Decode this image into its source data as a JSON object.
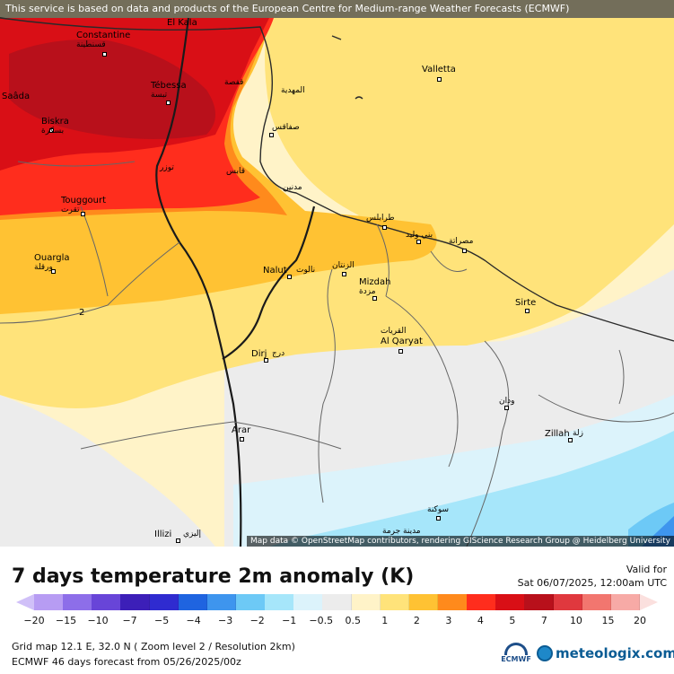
{
  "map": {
    "top_attribution": "This service is based on data and products of the European Centre for Medium-range Weather Forecasts (ECMWF)",
    "bottom_attribution": "Map data © OpenStreetMap contributors, rendering GIScience Research Group @ Heidelberg University",
    "contour_label": "2",
    "cities": [
      {
        "latin": "Constantine",
        "arabic": "قسنطينة"
      },
      {
        "latin": "El Kala",
        "arabic": ""
      },
      {
        "latin": "Saâda",
        "arabic": ""
      },
      {
        "latin": "Tébessa",
        "arabic": "تبسة"
      },
      {
        "latin": "Biskra",
        "arabic": "بسكرة"
      },
      {
        "latin": "",
        "arabic": "المهدية"
      },
      {
        "latin": "",
        "arabic": "صفاقس"
      },
      {
        "latin": "",
        "arabic": "توزر"
      },
      {
        "latin": "",
        "arabic": "قفصة"
      },
      {
        "latin": "Valletta",
        "arabic": ""
      },
      {
        "latin": "Touggourt",
        "arabic": "تقرت"
      },
      {
        "latin": "",
        "arabic": "قابس"
      },
      {
        "latin": "",
        "arabic": "مدنين"
      },
      {
        "latin": "Ouargla",
        "arabic": "ورقلة"
      },
      {
        "latin": "",
        "arabic": "طرابلس"
      },
      {
        "latin": "",
        "arabic": "مصراتة"
      },
      {
        "latin": "Nalut",
        "arabic": "نالوت"
      },
      {
        "latin": "",
        "arabic": "الزنتان"
      },
      {
        "latin": "Mizdah",
        "arabic": "مزدة"
      },
      {
        "latin": "Sirte",
        "arabic": ""
      },
      {
        "latin": "Al Qaryat",
        "arabic": "القريات"
      },
      {
        "latin": "Dirj",
        "arabic": "درج"
      },
      {
        "latin": "",
        "arabic": "ودان"
      },
      {
        "latin": "Zillah",
        "arabic": "زلة"
      },
      {
        "latin": "Arar",
        "arabic": ""
      },
      {
        "latin": "",
        "arabic": "سوكنة"
      },
      {
        "latin": "",
        "arabic": "مدينة جرمة"
      },
      {
        "latin": "Illizi",
        "arabic": "إليزي"
      },
      {
        "latin": "",
        "arabic": "بني وليد"
      }
    ]
  },
  "header": {
    "title": "7 days temperature 2m anomaly (K)",
    "valid_label": "Valid for",
    "valid_value": "Sat 06/07/2025, 12:00am UTC"
  },
  "legend": {
    "ticks": [
      "−20",
      "−15",
      "−10",
      "−7",
      "−5",
      "−4",
      "−3",
      "−2",
      "−1",
      "−0.5",
      "0.5",
      "1",
      "2",
      "3",
      "4",
      "5",
      "7",
      "10",
      "15",
      "20"
    ],
    "colors": [
      "#b79cf3",
      "#8d6ee9",
      "#6845d8",
      "#3c1fb8",
      "#2f2bd0",
      "#1f64e0",
      "#3e95ee",
      "#6dc9f6",
      "#a6e6fa",
      "#dcf3fb",
      "#ececec",
      "#fff3c8",
      "#ffe37a",
      "#ffc233",
      "#ff8a1c",
      "#ff2d1d",
      "#d90f16",
      "#b8101b",
      "#e0383e",
      "#f2766f",
      "#f7aaa6"
    ],
    "low_cap_color": "#d0c0f8",
    "high_cap_color": "#fbe0de"
  },
  "footer": {
    "grid_info": "Grid map 12.1 E, 32.0 N ( Zoom level 2 / Resolution 2km)",
    "forecast_info": "ECMWF 46 days forecast from  05/26/2025/00z",
    "ecmwf_logo_text": "ECMWF",
    "meteologix_logo_text": "meteologix.com"
  }
}
